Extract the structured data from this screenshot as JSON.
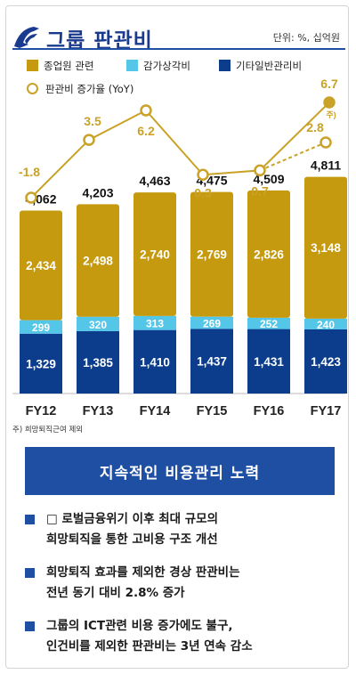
{
  "header": {
    "title": "그룹 판관비",
    "unit": "단위: %, 십억원"
  },
  "chart_data": {
    "type": "bar",
    "categories": [
      "FY12",
      "FY13",
      "FY14",
      "FY15",
      "FY16",
      "FY17"
    ],
    "series": [
      {
        "name": "기타일반관리비",
        "values": [
          1329,
          1385,
          1410,
          1437,
          1431,
          1423
        ],
        "color": "#0b3d8c"
      },
      {
        "name": "감가상각비",
        "values": [
          299,
          320,
          313,
          269,
          252,
          240
        ],
        "color": "#54c6e8"
      },
      {
        "name": "종업원 관련",
        "values": [
          2434,
          2498,
          2740,
          2769,
          2826,
          3148
        ],
        "color": "#c59a0e"
      }
    ],
    "value_labels": [
      [
        "1,329",
        "1,385",
        "1,410",
        "1,437",
        "1,431",
        "1,423"
      ],
      [
        "299",
        "320",
        "313",
        "269",
        "252",
        "240"
      ],
      [
        "2,434",
        "2,498",
        "2,740",
        "2,769",
        "2,826",
        "3,148"
      ]
    ],
    "totals": [
      4062,
      4203,
      4463,
      4475,
      4509,
      4811
    ],
    "total_labels": [
      "4,062",
      "4,203",
      "4,463",
      "4,475",
      "4,509",
      "4,811"
    ],
    "line": {
      "name": "판관비 증가율 (YoY)",
      "values": [
        -1.8,
        3.5,
        6.2,
        0.3,
        0.7,
        6.7
      ],
      "labels": [
        "-1.8",
        "3.5",
        "6.2",
        "0.3",
        "0.7",
        "6.7"
      ],
      "color": "#c9a227"
    },
    "adjusted_point": {
      "category": "FY17",
      "value": 2.8,
      "label": "2.8",
      "note": "주)"
    },
    "legend": [
      "종업원 관련",
      "감가상각비",
      "기타일반관리비",
      "판관비 증가율 (YoY)"
    ],
    "footnote": "주) 희망퇴직근여 제외"
  },
  "banner": "지속적인 비용관리 노력",
  "bullets": [
    {
      "lines": [
        "□ 로벌금융위기 이후 최대 규모의",
        "희망퇴직을 통한 고비용 구조 개선"
      ]
    },
    {
      "lines": [
        "희망퇴직 효과를 제외한 경상 판관비는",
        "전년 동기 대비 2.8% 증가"
      ]
    },
    {
      "lines": [
        "그룹의 ICT관련 비용 증가에도 불구,",
        "인건비를 제외한 판관비는 3년 연속 감소"
      ]
    }
  ]
}
